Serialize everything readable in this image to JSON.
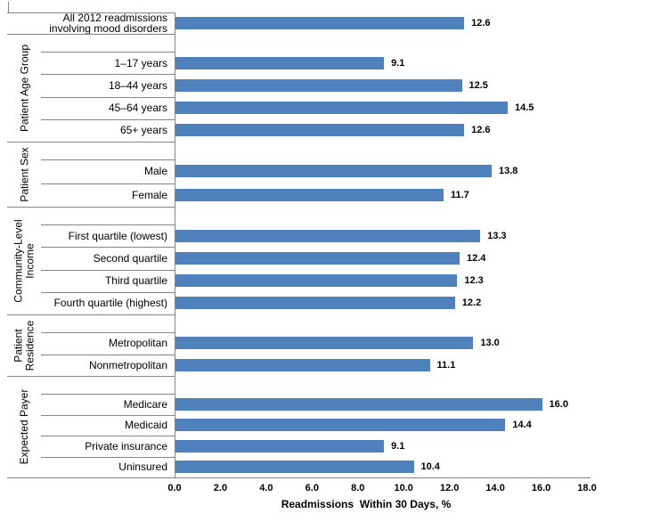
{
  "page": {
    "background": "#ffffff"
  },
  "chart_data": {
    "type": "bar",
    "orientation": "horizontal",
    "title": "",
    "xlabel": "Readmissions  Within 30 Days, %",
    "ylabel": "",
    "xlim": [
      0,
      18
    ],
    "grid": false,
    "legend": null,
    "bar_color": "#4F81BD",
    "axis_color": "#848484",
    "xticks": {
      "values": [
        0,
        2,
        4,
        6,
        8,
        10,
        12,
        14,
        16,
        18
      ],
      "labels": [
        "0.0",
        "2.0",
        "4.0",
        "6.0",
        "8.0",
        "10.0",
        "12.0",
        "14.0",
        "16.0",
        "18.0"
      ]
    },
    "groups": [
      {
        "label": "",
        "leading_gap": false,
        "categories": [
          "All 2012 readmissions involving mood disorders"
        ],
        "values": [
          12.6
        ],
        "value_labels": [
          "12.6"
        ]
      },
      {
        "label": "Patient Age Group",
        "leading_gap": true,
        "categories": [
          "1–17 years",
          "18–44 years",
          "45–64 years",
          "65+ years"
        ],
        "values": [
          9.1,
          12.5,
          14.5,
          12.6
        ],
        "value_labels": [
          "9.1",
          "12.5",
          "14.5",
          "12.6"
        ]
      },
      {
        "label": "Patient Sex",
        "leading_gap": true,
        "categories": [
          "Male",
          "Female"
        ],
        "values": [
          13.8,
          11.7
        ],
        "value_labels": [
          "13.8",
          "11.7"
        ]
      },
      {
        "label": "Community-Level Income",
        "leading_gap": true,
        "categories": [
          "First quartile (lowest)",
          "Second quartile",
          "Third quartile",
          "Fourth quartile (highest)"
        ],
        "values": [
          13.3,
          12.4,
          12.3,
          12.2
        ],
        "value_labels": [
          "13.3",
          "12.4",
          "12.3",
          "12.2"
        ]
      },
      {
        "label": "Patient Residence",
        "leading_gap": true,
        "categories": [
          "Metropolitan",
          "Nonmetropolitan"
        ],
        "values": [
          13.0,
          11.1
        ],
        "value_labels": [
          "13.0",
          "11.1"
        ]
      },
      {
        "label": "Expected Payer",
        "leading_gap": true,
        "categories": [
          "Medicare",
          "Medicaid",
          "Private insurance",
          "Uninsured"
        ],
        "values": [
          16.0,
          14.4,
          9.1,
          10.4
        ],
        "value_labels": [
          "16.0",
          "14.4",
          "9.1",
          "10.4"
        ]
      }
    ]
  }
}
